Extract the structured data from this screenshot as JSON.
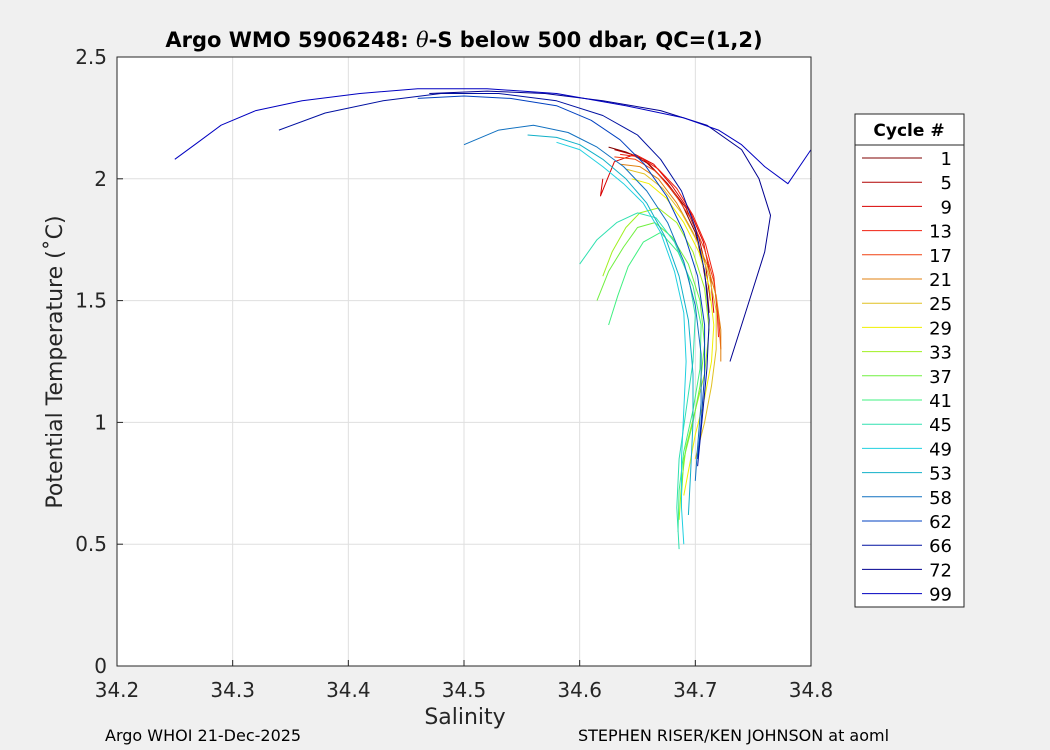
{
  "chart_data": {
    "type": "line",
    "title": "Argo WMO 5906248: θ-S below 500 dbar,  QC=(1,2)",
    "title_parts": {
      "prefix": "Argo WMO 5906248: ",
      "theta": "θ",
      "suffix": "-S below 500 dbar,  QC=(1,2)"
    },
    "xlabel": "Salinity",
    "ylabel": "Potential Temperature (˚C)",
    "xlim": [
      34.2,
      34.8
    ],
    "ylim": [
      0,
      2.5
    ],
    "xticks": [
      34.2,
      34.3,
      34.4,
      34.5,
      34.6,
      34.7,
      34.8
    ],
    "xtick_labels": [
      "34.2",
      "34.3",
      "34.4",
      "34.5",
      "34.6",
      "34.7",
      "34.8"
    ],
    "yticks": [
      0,
      0.5,
      1,
      1.5,
      2,
      2.5
    ],
    "ytick_labels": [
      "0",
      "0.5",
      "1",
      "1.5",
      "2",
      "2.5"
    ],
    "grid": true,
    "legend": {
      "title": "Cycle #",
      "placement": "outside-right",
      "entries": [
        "1",
        "5",
        "9",
        "13",
        "17",
        "21",
        "25",
        "29",
        "33",
        "37",
        "41",
        "45",
        "49",
        "53",
        "58",
        "62",
        "66",
        "72",
        "99"
      ],
      "colors": [
        "#7f0000",
        "#b00000",
        "#d80000",
        "#f02010",
        "#f04010",
        "#e08010",
        "#e0c020",
        "#f0f000",
        "#a0f020",
        "#70f040",
        "#40f080",
        "#30e0b0",
        "#20d0e0",
        "#10b0c8",
        "#1070c0",
        "#0040c0",
        "#0010a0",
        "#000090",
        "#0000c0"
      ]
    },
    "series": [
      {
        "name": "1",
        "color": "#7f0000",
        "points": [
          [
            34.625,
            2.13
          ],
          [
            34.64,
            2.11
          ],
          [
            34.655,
            2.08
          ],
          [
            34.672,
            2.0
          ],
          [
            34.688,
            1.9
          ],
          [
            34.7,
            1.78
          ],
          [
            34.706,
            1.66
          ],
          [
            34.71,
            1.55
          ],
          [
            34.712,
            1.45
          ]
        ]
      },
      {
        "name": "5",
        "color": "#b00000",
        "points": [
          [
            34.63,
            2.12
          ],
          [
            34.645,
            2.1
          ],
          [
            34.66,
            2.06
          ],
          [
            34.676,
            1.98
          ],
          [
            34.692,
            1.88
          ],
          [
            34.703,
            1.76
          ],
          [
            34.709,
            1.64
          ],
          [
            34.713,
            1.5
          ]
        ]
      },
      {
        "name": "9",
        "color": "#d80000",
        "points": [
          [
            34.62,
            2.0
          ],
          [
            34.618,
            1.93
          ],
          [
            34.63,
            2.07
          ],
          [
            34.648,
            2.1
          ],
          [
            34.664,
            2.06
          ],
          [
            34.68,
            1.97
          ],
          [
            34.696,
            1.86
          ],
          [
            34.707,
            1.74
          ],
          [
            34.713,
            1.6
          ],
          [
            34.716,
            1.45
          ]
        ]
      },
      {
        "name": "13",
        "color": "#f02010",
        "points": [
          [
            34.635,
            2.1
          ],
          [
            34.652,
            2.09
          ],
          [
            34.668,
            2.04
          ],
          [
            34.684,
            1.96
          ],
          [
            34.698,
            1.85
          ],
          [
            34.709,
            1.73
          ],
          [
            34.716,
            1.6
          ],
          [
            34.719,
            1.45
          ],
          [
            34.72,
            1.35
          ]
        ]
      },
      {
        "name": "17",
        "color": "#f04010",
        "points": [
          [
            34.63,
            2.09
          ],
          [
            34.648,
            2.08
          ],
          [
            34.666,
            2.03
          ],
          [
            34.682,
            1.94
          ],
          [
            34.697,
            1.83
          ],
          [
            34.708,
            1.71
          ],
          [
            34.716,
            1.58
          ],
          [
            34.72,
            1.44
          ],
          [
            34.722,
            1.3
          ]
        ]
      },
      {
        "name": "21",
        "color": "#e08010",
        "points": [
          [
            34.635,
            2.06
          ],
          [
            34.652,
            2.05
          ],
          [
            34.668,
            2.0
          ],
          [
            34.684,
            1.9
          ],
          [
            34.698,
            1.78
          ],
          [
            34.71,
            1.65
          ],
          [
            34.718,
            1.52
          ],
          [
            34.722,
            1.38
          ],
          [
            34.722,
            1.25
          ]
        ]
      },
      {
        "name": "25",
        "color": "#e0c020",
        "points": [
          [
            34.64,
            2.04
          ],
          [
            34.656,
            2.02
          ],
          [
            34.672,
            1.96
          ],
          [
            34.688,
            1.86
          ],
          [
            34.702,
            1.74
          ],
          [
            34.712,
            1.6
          ],
          [
            34.718,
            1.46
          ],
          [
            34.718,
            1.3
          ],
          [
            34.714,
            1.15
          ],
          [
            34.708,
            1.0
          ],
          [
            34.7,
            0.85
          ]
        ]
      },
      {
        "name": "29",
        "color": "#f0f000",
        "points": [
          [
            34.645,
            2.0
          ],
          [
            34.66,
            1.98
          ],
          [
            34.675,
            1.92
          ],
          [
            34.69,
            1.82
          ],
          [
            34.703,
            1.7
          ],
          [
            34.712,
            1.56
          ],
          [
            34.716,
            1.4
          ],
          [
            34.714,
            1.25
          ],
          [
            34.708,
            1.1
          ],
          [
            34.7,
            0.95
          ],
          [
            34.694,
            0.8
          ],
          [
            34.69,
            0.7
          ]
        ]
      },
      {
        "name": "33",
        "color": "#a0f020",
        "points": [
          [
            34.62,
            1.6
          ],
          [
            34.628,
            1.7
          ],
          [
            34.64,
            1.8
          ],
          [
            34.652,
            1.86
          ],
          [
            34.668,
            1.88
          ],
          [
            34.684,
            1.82
          ],
          [
            34.698,
            1.7
          ],
          [
            34.708,
            1.55
          ],
          [
            34.712,
            1.38
          ],
          [
            34.708,
            1.2
          ],
          [
            34.7,
            1.05
          ],
          [
            34.692,
            0.9
          ],
          [
            34.688,
            0.75
          ],
          [
            34.686,
            0.6
          ]
        ]
      },
      {
        "name": "37",
        "color": "#70f040",
        "points": [
          [
            34.615,
            1.5
          ],
          [
            34.625,
            1.62
          ],
          [
            34.638,
            1.72
          ],
          [
            34.65,
            1.8
          ],
          [
            34.665,
            1.82
          ],
          [
            34.68,
            1.76
          ],
          [
            34.694,
            1.65
          ],
          [
            34.704,
            1.5
          ],
          [
            34.708,
            1.32
          ],
          [
            34.704,
            1.15
          ],
          [
            34.698,
            1.0
          ],
          [
            34.69,
            0.85
          ],
          [
            34.688,
            0.7
          ]
        ]
      },
      {
        "name": "41",
        "color": "#40f080",
        "points": [
          [
            34.625,
            1.4
          ],
          [
            34.633,
            1.52
          ],
          [
            34.642,
            1.64
          ],
          [
            34.655,
            1.74
          ],
          [
            34.67,
            1.78
          ],
          [
            34.685,
            1.7
          ],
          [
            34.698,
            1.56
          ],
          [
            34.705,
            1.4
          ],
          [
            34.704,
            1.22
          ],
          [
            34.698,
            1.05
          ],
          [
            34.69,
            0.88
          ],
          [
            34.686,
            0.72
          ],
          [
            34.685,
            0.55
          ]
        ]
      },
      {
        "name": "45",
        "color": "#30e0b0",
        "points": [
          [
            34.6,
            1.65
          ],
          [
            34.615,
            1.75
          ],
          [
            34.632,
            1.82
          ],
          [
            34.65,
            1.86
          ],
          [
            34.666,
            1.84
          ],
          [
            34.682,
            1.74
          ],
          [
            34.694,
            1.6
          ],
          [
            34.7,
            1.44
          ],
          [
            34.698,
            1.25
          ],
          [
            34.692,
            1.05
          ],
          [
            34.686,
            0.85
          ],
          [
            34.684,
            0.65
          ],
          [
            34.686,
            0.48
          ]
        ]
      },
      {
        "name": "49",
        "color": "#20d0e0",
        "points": [
          [
            34.58,
            2.15
          ],
          [
            34.6,
            2.12
          ],
          [
            34.62,
            2.05
          ],
          [
            34.638,
            1.98
          ],
          [
            34.655,
            1.9
          ],
          [
            34.67,
            1.78
          ],
          [
            34.682,
            1.62
          ],
          [
            34.69,
            1.45
          ],
          [
            34.692,
            1.25
          ],
          [
            34.69,
            1.05
          ],
          [
            34.688,
            0.85
          ],
          [
            34.688,
            0.65
          ],
          [
            34.69,
            0.5
          ]
        ]
      },
      {
        "name": "53",
        "color": "#10b0c8",
        "points": [
          [
            34.555,
            2.18
          ],
          [
            34.58,
            2.17
          ],
          [
            34.6,
            2.14
          ],
          [
            34.62,
            2.08
          ],
          [
            34.64,
            2.0
          ],
          [
            34.658,
            1.9
          ],
          [
            34.674,
            1.76
          ],
          [
            34.686,
            1.6
          ],
          [
            34.694,
            1.42
          ],
          [
            34.698,
            1.2
          ],
          [
            34.698,
            1.0
          ],
          [
            34.696,
            0.8
          ],
          [
            34.694,
            0.62
          ]
        ]
      },
      {
        "name": "58",
        "color": "#1070c0",
        "points": [
          [
            34.5,
            2.14
          ],
          [
            34.53,
            2.2
          ],
          [
            34.56,
            2.22
          ],
          [
            34.59,
            2.19
          ],
          [
            34.615,
            2.13
          ],
          [
            34.638,
            2.05
          ],
          [
            34.658,
            1.95
          ],
          [
            34.676,
            1.82
          ],
          [
            34.69,
            1.66
          ],
          [
            34.7,
            1.48
          ],
          [
            34.705,
            1.28
          ],
          [
            34.705,
            1.08
          ],
          [
            34.702,
            0.9
          ],
          [
            34.7,
            0.76
          ]
        ]
      },
      {
        "name": "62",
        "color": "#0040c0",
        "points": [
          [
            34.46,
            2.33
          ],
          [
            34.5,
            2.34
          ],
          [
            34.54,
            2.33
          ],
          [
            34.58,
            2.3
          ],
          [
            34.61,
            2.24
          ],
          [
            34.635,
            2.16
          ],
          [
            34.656,
            2.06
          ],
          [
            34.675,
            1.93
          ],
          [
            34.69,
            1.78
          ],
          [
            34.702,
            1.6
          ],
          [
            34.708,
            1.4
          ],
          [
            34.708,
            1.2
          ],
          [
            34.705,
            1.0
          ],
          [
            34.702,
            0.85
          ]
        ]
      },
      {
        "name": "66",
        "color": "#0010a0",
        "points": [
          [
            34.34,
            2.2
          ],
          [
            34.38,
            2.27
          ],
          [
            34.43,
            2.32
          ],
          [
            34.48,
            2.35
          ],
          [
            34.53,
            2.35
          ],
          [
            34.58,
            2.32
          ],
          [
            34.62,
            2.26
          ],
          [
            34.65,
            2.18
          ],
          [
            34.67,
            2.08
          ],
          [
            34.688,
            1.95
          ],
          [
            34.7,
            1.8
          ],
          [
            34.708,
            1.62
          ],
          [
            34.712,
            1.42
          ],
          [
            34.71,
            1.22
          ],
          [
            34.706,
            1.02
          ],
          [
            34.702,
            0.82
          ]
        ]
      },
      {
        "name": "72",
        "color": "#000090",
        "points": [
          [
            34.47,
            2.35
          ],
          [
            34.52,
            2.36
          ],
          [
            34.57,
            2.35
          ],
          [
            34.62,
            2.32
          ],
          [
            34.67,
            2.28
          ],
          [
            34.71,
            2.22
          ],
          [
            34.74,
            2.12
          ],
          [
            34.755,
            2.0
          ],
          [
            34.765,
            1.85
          ],
          [
            34.76,
            1.7
          ],
          [
            34.75,
            1.55
          ],
          [
            34.74,
            1.4
          ],
          [
            34.73,
            1.25
          ]
        ]
      },
      {
        "name": "99",
        "color": "#0000c0",
        "points": [
          [
            34.25,
            2.08
          ],
          [
            34.27,
            2.15
          ],
          [
            34.29,
            2.22
          ],
          [
            34.32,
            2.28
          ],
          [
            34.36,
            2.32
          ],
          [
            34.41,
            2.35
          ],
          [
            34.46,
            2.37
          ],
          [
            34.52,
            2.37
          ],
          [
            34.58,
            2.35
          ],
          [
            34.64,
            2.3
          ],
          [
            34.69,
            2.25
          ],
          [
            34.72,
            2.2
          ],
          [
            34.74,
            2.14
          ],
          [
            34.76,
            2.05
          ],
          [
            34.78,
            1.98
          ],
          [
            34.8,
            2.12
          ]
        ]
      }
    ]
  },
  "footer": {
    "left": "Argo WHOI 21-Dec-2025",
    "right": "STEPHEN RISER/KEN JOHNSON at aoml"
  }
}
